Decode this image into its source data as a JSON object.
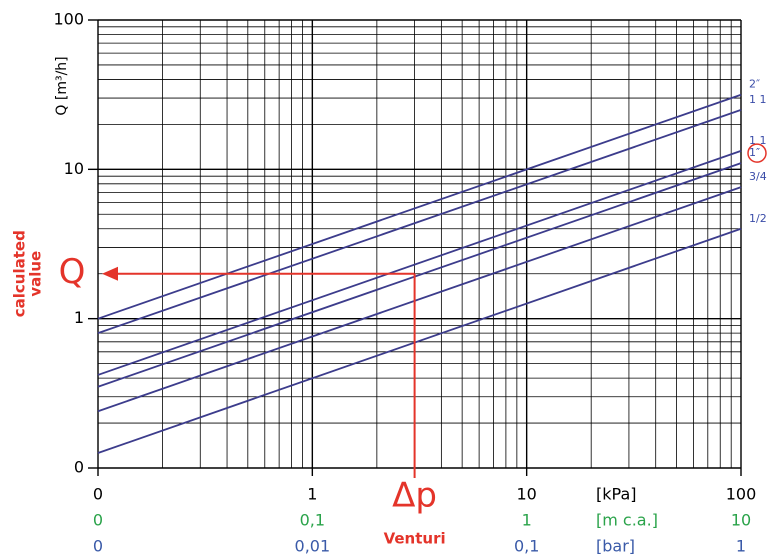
{
  "chart_data": {
    "type": "line",
    "y_label": "Q [m³/h]",
    "x": [
      0.1,
      100
    ],
    "series": [
      {
        "name": "2″",
        "color": "#3c3c8c",
        "values": [
          1,
          31.6
        ]
      },
      {
        "name": "1 1",
        "color": "#3c3c8c",
        "values": [
          0.8,
          25
        ]
      },
      {
        "name": "1 1",
        "color": "#3c3c8c",
        "values": [
          0.42,
          13.3
        ]
      },
      {
        "name": "1″",
        "color": "#3c3c8c",
        "values": [
          0.35,
          11
        ]
      },
      {
        "name": "3/4",
        "color": "#3c3c8c",
        "values": [
          0.24,
          7.6
        ]
      },
      {
        "name": "1/2",
        "color": "#3c3c8c",
        "values": [
          0.126,
          4
        ]
      }
    ],
    "label_color": "#3a4ca8",
    "xlim": [
      0.1,
      100
    ],
    "ylim": [
      0.1,
      100
    ],
    "log_x": true,
    "log_y": true,
    "grid": true,
    "xticks": [
      {
        "value": 0.1,
        "label": "0"
      },
      1,
      10,
      100
    ],
    "yticks": [
      {
        "value": 0.1,
        "label": "0"
      },
      1,
      10,
      100
    ],
    "x_unit": "[kPa]",
    "x_scales": [
      {
        "unit": "[m c.a.]",
        "color": "#2aa34a",
        "labels": [
          "0",
          "0,1",
          "1",
          "10"
        ]
      },
      {
        "unit": "[bar]",
        "color": "#3a5aa8",
        "labels": [
          "0",
          "0,01",
          "0,1",
          "1"
        ]
      }
    ],
    "highlight": {
      "series": 3,
      "color": "#e4342a"
    },
    "reading": {
      "x": 3,
      "y": 2,
      "color": "#e4342a",
      "x_label": "Δp",
      "x_note": "Venturi",
      "y_label": "Q",
      "y_note": [
        "calculated",
        "value"
      ]
    }
  }
}
